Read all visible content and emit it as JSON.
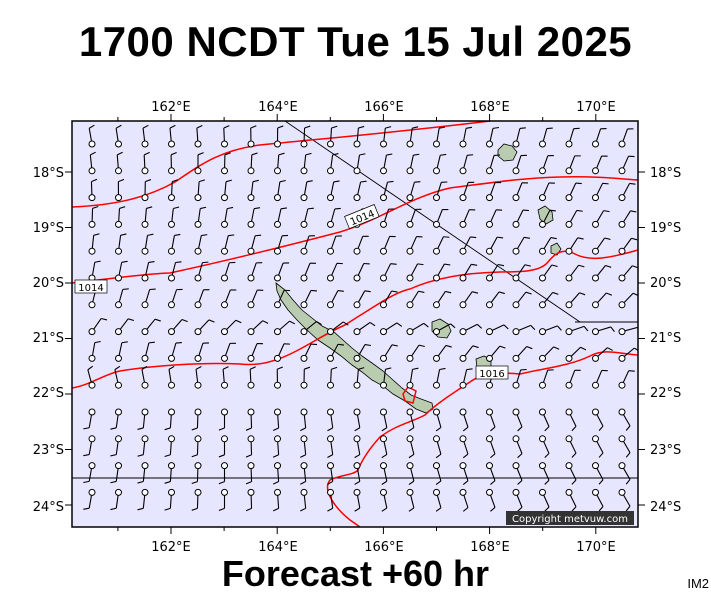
{
  "header": {
    "title": "1700 NCDT Tue 15 Jul 2025"
  },
  "footer": {
    "forecast": "Forecast +60 hr",
    "image_id": "IM2"
  },
  "map": {
    "copyright": "Copyright metvuw.com",
    "lon_labels": [
      "162°E",
      "164°E",
      "166°E",
      "168°E",
      "170°E"
    ],
    "lat_labels": [
      "18°S",
      "19°S",
      "20°S",
      "21°S",
      "22°S",
      "23°S",
      "24°S"
    ],
    "isobar_labels": [
      "1014",
      "1014",
      "1016"
    ],
    "colors": {
      "ocean": "#e6e6ff",
      "land": "#b9ccb0",
      "isobar": "#ff0000",
      "frame": "#000000"
    },
    "wind_barbs": "grid of station circles with wind barbs (knots)"
  }
}
